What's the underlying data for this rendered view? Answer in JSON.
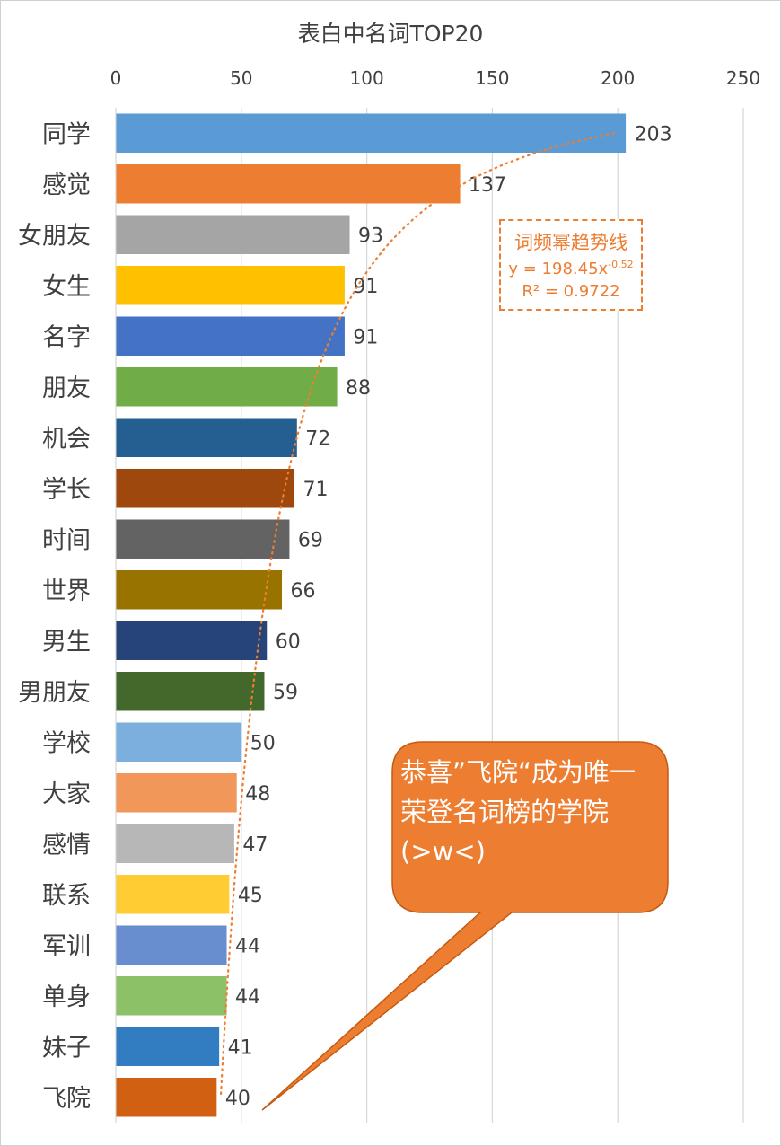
{
  "chart_data": {
    "type": "bar",
    "orientation": "horizontal",
    "title": "表白中名词TOP20",
    "x_axis_position": "top",
    "xlim": [
      0,
      250
    ],
    "xticks": [
      0,
      50,
      100,
      150,
      200,
      250
    ],
    "grid": true,
    "categories": [
      "同学",
      "感觉",
      "女朋友",
      "女生",
      "名字",
      "朋友",
      "机会",
      "学长",
      "时间",
      "世界",
      "男生",
      "男朋友",
      "学校",
      "大家",
      "感情",
      "联系",
      "军训",
      "单身",
      "妹子",
      "飞院"
    ],
    "values": [
      203,
      137,
      93,
      91,
      91,
      88,
      72,
      71,
      69,
      66,
      60,
      59,
      50,
      48,
      47,
      45,
      44,
      44,
      41,
      40
    ],
    "colors": [
      "#5b9bd5",
      "#ed7d31",
      "#a5a5a5",
      "#ffc000",
      "#4472c4",
      "#70ad47",
      "#255e91",
      "#9e480e",
      "#636363",
      "#997300",
      "#264478",
      "#43682b",
      "#7cafdd",
      "#f1975a",
      "#b7b7b7",
      "#ffcd33",
      "#698ed0",
      "#8cc168",
      "#327dc2",
      "#d26012"
    ],
    "trendline": {
      "type": "power",
      "color": "#ed7d31",
      "coef": 198.45,
      "exp": -0.52,
      "label": "词频幂趋势线",
      "equation_prefix": "y = 198.45x",
      "equation_exp": "-0.52",
      "r2_label": "R² = 0.9722"
    }
  },
  "callout": {
    "text": "恭喜”飞院“成为唯一荣登名词榜的学院(>w<)",
    "color": "#ed7d31"
  }
}
